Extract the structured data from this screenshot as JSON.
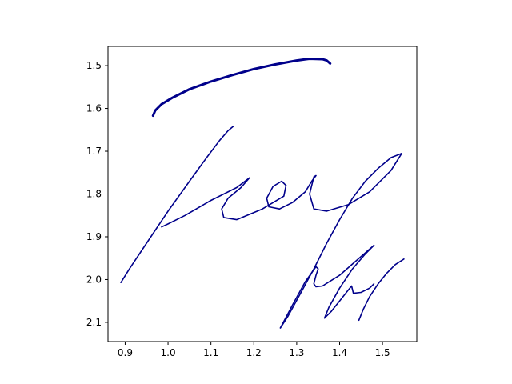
{
  "chart_data": {
    "type": "line",
    "title": "",
    "xlabel": "",
    "ylabel": "",
    "xlim": [
      0.86,
      1.58
    ],
    "ylim": [
      2.145,
      1.455
    ],
    "y_inverted": true,
    "grid": false,
    "legend": "none",
    "x_ticks": [
      "0.9",
      "1.0",
      "1.1",
      "1.2",
      "1.3",
      "1.4",
      "1.5"
    ],
    "y_ticks": [
      "1.5",
      "1.6",
      "1.7",
      "1.8",
      "1.9",
      "2.0",
      "2.1"
    ],
    "line_color": "#00008b",
    "strokes": [
      {
        "weight": "bold",
        "x": [
          0.965,
          0.97,
          0.985,
          1.01,
          1.05,
          1.1,
          1.15,
          1.2,
          1.25,
          1.3,
          1.33,
          1.36,
          1.37,
          1.378
        ],
        "y": [
          1.617,
          1.605,
          1.59,
          1.575,
          1.555,
          1.537,
          1.522,
          1.508,
          1.497,
          1.488,
          1.484,
          1.485,
          1.488,
          1.495
        ]
      },
      {
        "weight": "normal",
        "x": [
          1.152,
          1.14,
          1.12,
          1.09,
          1.05,
          1.0,
          0.95,
          0.91,
          0.89
        ],
        "y": [
          1.642,
          1.652,
          1.675,
          1.715,
          1.77,
          1.84,
          1.915,
          1.975,
          2.007
        ]
      },
      {
        "weight": "normal",
        "x": [
          0.985,
          1.0,
          1.04,
          1.1,
          1.16,
          1.19,
          1.17,
          1.14,
          1.125,
          1.13,
          1.16,
          1.22,
          1.27,
          1.275
        ],
        "y": [
          1.877,
          1.87,
          1.85,
          1.815,
          1.785,
          1.762,
          1.785,
          1.81,
          1.835,
          1.855,
          1.86,
          1.835,
          1.805,
          1.78
        ]
      },
      {
        "weight": "normal",
        "x": [
          1.275,
          1.265,
          1.245,
          1.23,
          1.235,
          1.26,
          1.29,
          1.32,
          1.335,
          1.345,
          1.34,
          1.33,
          1.34,
          1.37,
          1.42,
          1.47,
          1.52,
          1.545
        ],
        "y": [
          1.78,
          1.77,
          1.782,
          1.81,
          1.83,
          1.835,
          1.82,
          1.795,
          1.77,
          1.757,
          1.76,
          1.8,
          1.835,
          1.84,
          1.825,
          1.795,
          1.745,
          1.705
        ]
      },
      {
        "weight": "normal",
        "x": [
          1.545,
          1.52,
          1.49,
          1.46,
          1.43,
          1.4,
          1.37,
          1.34,
          1.31,
          1.28,
          1.262
        ],
        "y": [
          1.705,
          1.715,
          1.74,
          1.77,
          1.81,
          1.86,
          1.915,
          1.975,
          2.03,
          2.085,
          2.113
        ]
      },
      {
        "weight": "normal",
        "x": [
          1.262,
          1.29,
          1.32,
          1.345,
          1.35,
          1.345,
          1.34,
          1.345,
          1.36,
          1.4,
          1.44,
          1.48
        ],
        "y": [
          2.113,
          2.06,
          2.005,
          1.97,
          1.975,
          1.99,
          2.01,
          2.017,
          2.015,
          1.99,
          1.955,
          1.92
        ]
      },
      {
        "weight": "normal",
        "x": [
          1.48,
          1.46,
          1.43,
          1.4,
          1.375,
          1.365
        ],
        "y": [
          1.92,
          1.94,
          1.975,
          2.02,
          2.065,
          2.09
        ]
      },
      {
        "weight": "normal",
        "x": [
          1.365,
          1.38,
          1.4,
          1.42,
          1.428,
          1.432,
          1.45,
          1.47,
          1.48
        ],
        "y": [
          2.09,
          2.075,
          2.05,
          2.025,
          2.015,
          2.032,
          2.03,
          2.02,
          2.01
        ]
      },
      {
        "weight": "normal",
        "x": [
          1.55,
          1.53,
          1.51,
          1.49,
          1.47,
          1.455,
          1.445
        ],
        "y": [
          1.952,
          1.965,
          1.985,
          2.01,
          2.04,
          2.07,
          2.095
        ]
      }
    ]
  }
}
